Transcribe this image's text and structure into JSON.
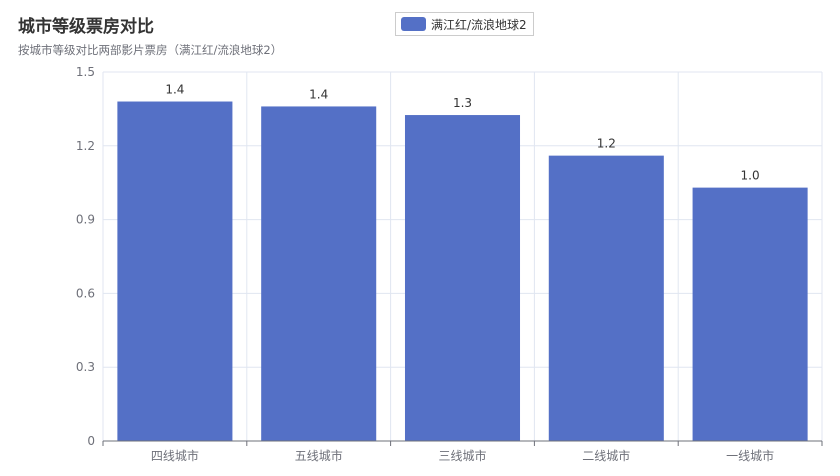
{
  "chart_data": {
    "type": "bar",
    "title": "城市等级票房对比",
    "subtitle": "按城市等级对比两部影片票房（满江红/流浪地球2）",
    "categories": [
      "四线城市",
      "五线城市",
      "三线城市",
      "二线城市",
      "一线城市"
    ],
    "series": [
      {
        "name": "满江红/流浪地球2",
        "values": [
          1.38,
          1.36,
          1.325,
          1.16,
          1.03
        ],
        "labels": [
          "1.4",
          "1.4",
          "1.3",
          "1.2",
          "1.0"
        ],
        "color": "#5470c6"
      }
    ],
    "yticks": [
      "0",
      "0.3",
      "0.6",
      "0.9",
      "1.2",
      "1.5"
    ],
    "ylim": [
      0,
      1.5
    ],
    "grid": true,
    "legend_position": "top-center"
  }
}
